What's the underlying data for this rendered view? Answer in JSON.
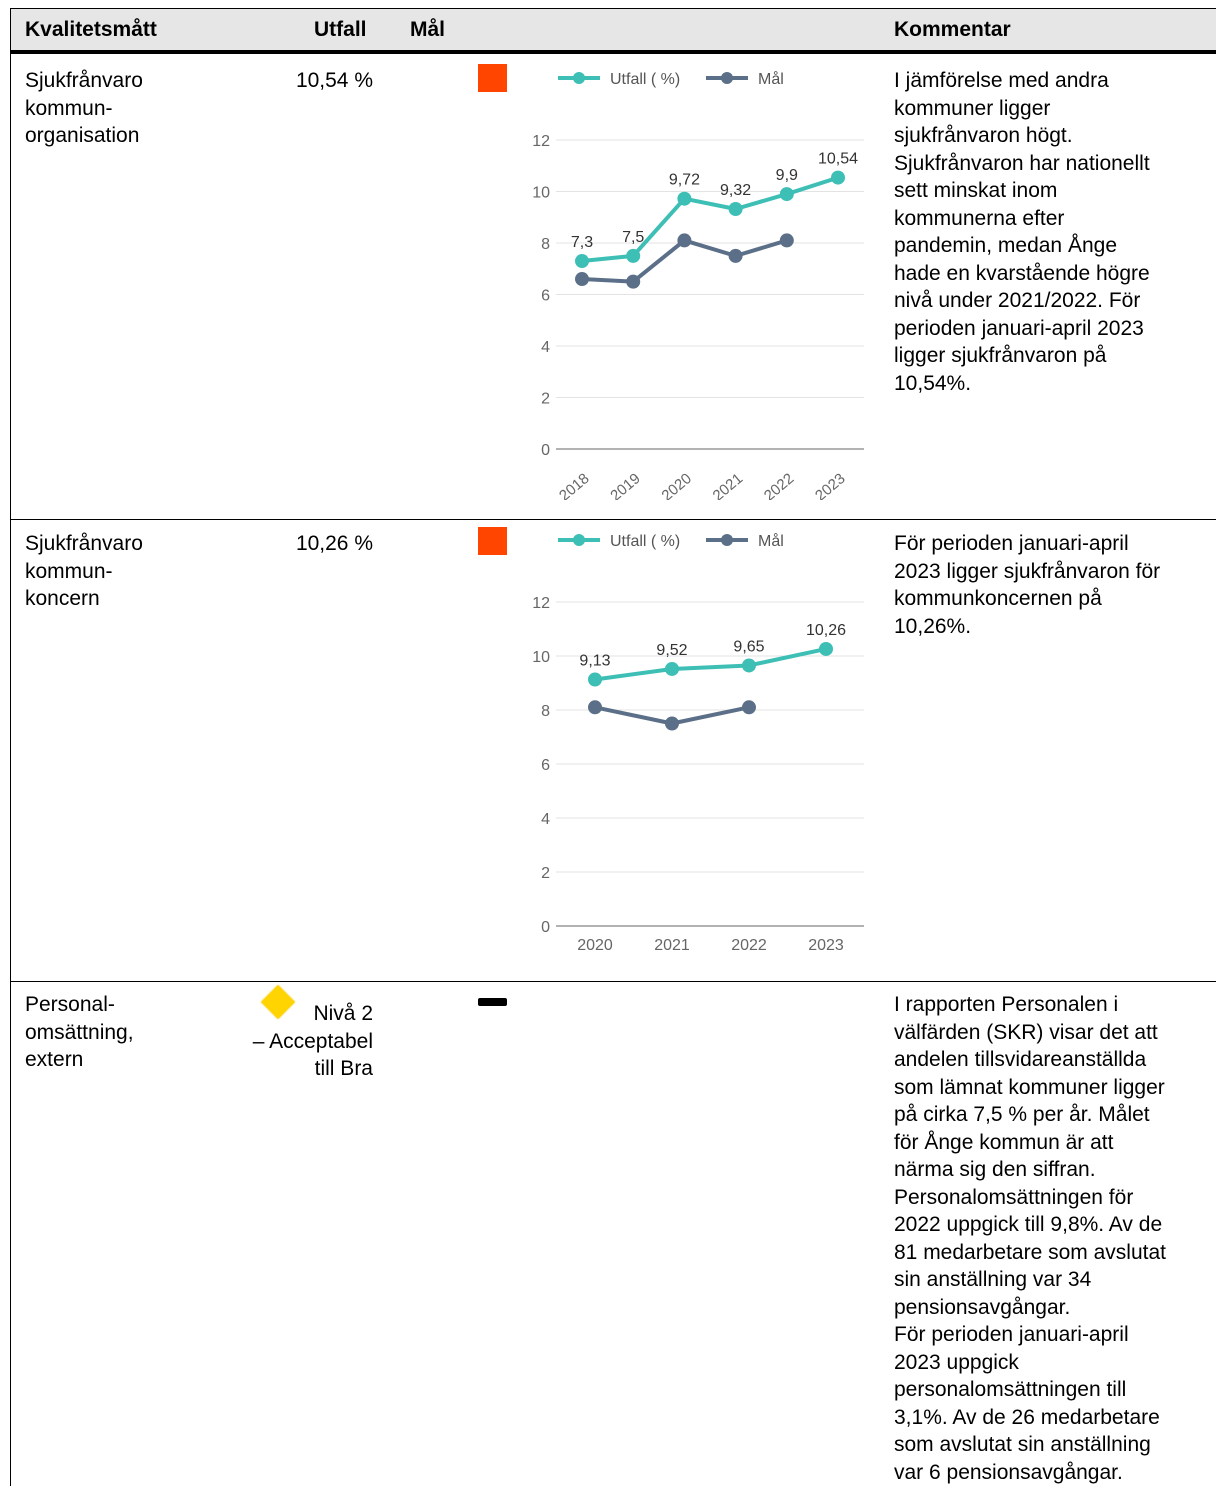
{
  "header": {
    "col_measure": "Kvalitetsmått",
    "col_result": "Utfall",
    "col_goal": "Mål",
    "col_comment": "Kommentar"
  },
  "rows": [
    {
      "name_lines": [
        "Sjukfrånvaro",
        "kommun-",
        "organisation"
      ],
      "result": "10,54 %",
      "status": "red",
      "comment_lines": [
        "I jämförelse med andra",
        "kommuner ligger",
        "sjukfrånvaron högt.",
        "Sjukfrånvaron har nationellt",
        "sett minskat inom",
        "kommunerna efter",
        "pandemin, medan Ånge",
        "hade en kvarstående högre",
        "nivå under 2021/2022. För",
        "perioden januari-april 2023",
        "ligger sjukfrånvaron på",
        "10,54%."
      ]
    },
    {
      "name_lines": [
        "Sjukfrånvaro",
        "kommun-",
        "koncern"
      ],
      "result": "10,26 %",
      "status": "red",
      "comment_lines": [
        "För perioden januari-april",
        "2023 ligger sjukfrånvaron för",
        "kommunkoncernen på",
        "10,26%."
      ]
    },
    {
      "name_lines": [
        "Personal-",
        "omsättning,",
        "extern"
      ],
      "result_lines": [
        "Nivå 2",
        "– Acceptabel",
        "till Bra"
      ],
      "status": "yellow-diamond",
      "goal_marker": "dash",
      "comment_lines": [
        "I rapporten Personalen i",
        "välfärden (SKR) visar det att",
        "andelen tillsvidareanställda",
        "som lämnat kommuner ligger",
        "på cirka 7,5 % per år. Målet",
        "för Ånge kommun är att",
        "närma sig den siffran.",
        "Personalomsättningen för",
        "2022 uppgick till 9,8%. Av de",
        "81 medarbetare som avslutat",
        "sin anställning var 34",
        "pensionsavgångar.",
        "För perioden januari-april",
        "2023 uppgick",
        "personalomsättningen till",
        "3,1%. Av de 26 medarbetare",
        "som avslutat sin anställning",
        "var 6 pensionsavgångar."
      ]
    }
  ],
  "colors": {
    "status_red": "#ff4500",
    "status_yellow": "#ffd400",
    "utfall": "#3dbfb5",
    "mal": "#5b7088"
  },
  "chart_data": [
    {
      "type": "line",
      "legend": [
        "Utfall ( %)",
        "Mål"
      ],
      "legend_position": "top",
      "x": [
        "2018",
        "2019",
        "2020",
        "2021",
        "2022",
        "2023"
      ],
      "x_tick_rotated": true,
      "ylim": [
        0,
        12
      ],
      "yticks": [
        "0",
        "2",
        "4",
        "6",
        "8",
        "10",
        "12"
      ],
      "grid": true,
      "series": [
        {
          "name": "Utfall ( %)",
          "values": [
            7.3,
            7.5,
            9.72,
            9.32,
            9.9,
            10.54
          ],
          "labels": [
            "7,3",
            "7,5",
            "9,72",
            "9,32",
            "9,9",
            "10,54"
          ]
        },
        {
          "name": "Mål",
          "values": [
            6.6,
            6.5,
            8.1,
            7.5,
            8.1,
            null
          ]
        }
      ]
    },
    {
      "type": "line",
      "legend": [
        "Utfall ( %)",
        "Mål"
      ],
      "legend_position": "top",
      "x": [
        "2020",
        "2021",
        "2022",
        "2023"
      ],
      "x_tick_rotated": false,
      "ylim": [
        0,
        12
      ],
      "yticks": [
        "0",
        "2",
        "4",
        "6",
        "8",
        "10",
        "12"
      ],
      "grid": true,
      "series": [
        {
          "name": "Utfall ( %)",
          "values": [
            9.13,
            9.52,
            9.65,
            10.26
          ],
          "labels": [
            "9,13",
            "9,52",
            "9,65",
            "10,26"
          ]
        },
        {
          "name": "Mål",
          "values": [
            8.1,
            7.5,
            8.1,
            null
          ]
        }
      ]
    }
  ]
}
